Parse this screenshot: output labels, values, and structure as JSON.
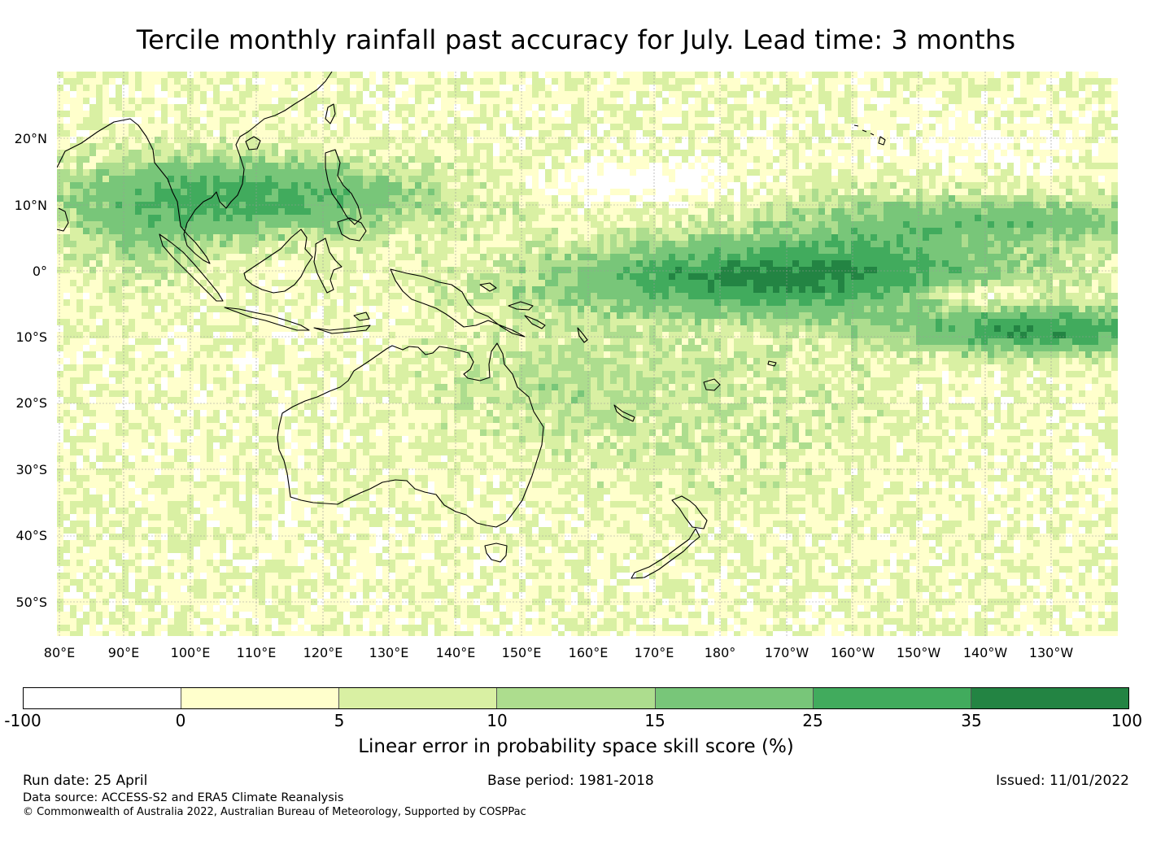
{
  "title": "Tercile monthly rainfall past accuracy for July. Lead time: 3 months",
  "map": {
    "lat_labels": [
      "20°N",
      "10°N",
      "0°",
      "10°S",
      "20°S",
      "30°S",
      "40°S",
      "50°S"
    ],
    "lon_labels": [
      "80°E",
      "90°E",
      "100°E",
      "110°E",
      "120°E",
      "130°E",
      "140°E",
      "150°E",
      "160°E",
      "170°E",
      "180°",
      "170°W",
      "160°W",
      "150°W",
      "140°W",
      "130°W"
    ]
  },
  "colorbar": {
    "colors": [
      "#ffffff",
      "#ffffcc",
      "#d9f0a3",
      "#addd8e",
      "#78c679",
      "#41ab5d",
      "#238443"
    ],
    "ticks": [
      "-100",
      "0",
      "5",
      "10",
      "15",
      "25",
      "35",
      "100"
    ],
    "label": "Linear error in probability space skill score (%)"
  },
  "footer": {
    "run_date": "Run date: 25 April",
    "base_period": "Base period: 1981-2018",
    "issued": "Issued: 11/01/2022",
    "data_source": "Data source: ACCESS-S2 and ERA5 Climate Reanalysis",
    "copyright": "© Commonwealth of Australia 2022, Australian Bureau of Meteorology, Supported by COSPPac"
  }
}
